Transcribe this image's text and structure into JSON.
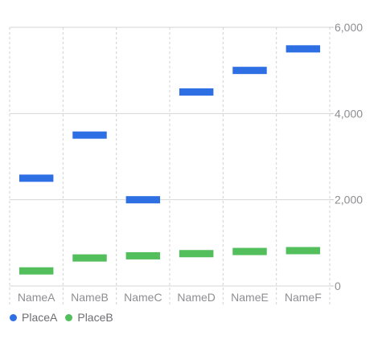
{
  "chart_data": {
    "type": "range-bar",
    "categories": [
      "NameA",
      "NameB",
      "NameC",
      "NameD",
      "NameE",
      "NameF"
    ],
    "series": [
      {
        "name": "PlaceA",
        "color": "#2f6fe4",
        "values": [
          2500,
          3500,
          2000,
          4500,
          5000,
          5500
        ]
      },
      {
        "name": "PlaceB",
        "color": "#52be5c",
        "values": [
          350,
          650,
          700,
          750,
          800,
          820
        ]
      }
    ],
    "ylim": [
      0,
      6000
    ],
    "yticks": [
      0,
      2000,
      4000,
      6000
    ],
    "ytick_labels": [
      "0",
      "2,000",
      "4,000",
      "6,000"
    ],
    "ytick_position": "right",
    "legend_position": "bottom-left",
    "grid": true
  }
}
